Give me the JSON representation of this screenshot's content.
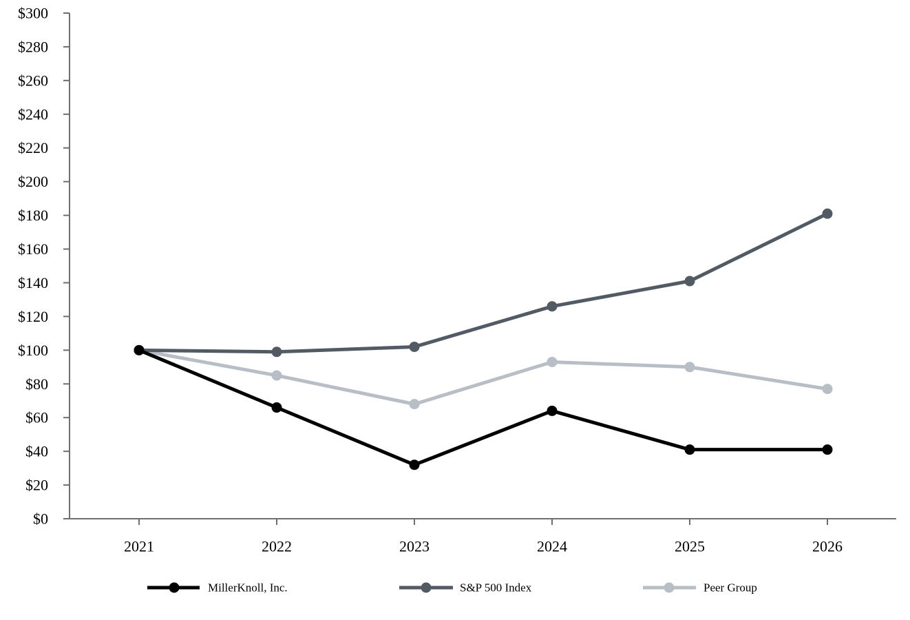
{
  "chart_data": {
    "type": "line",
    "title": "",
    "xlabel": "",
    "ylabel": "",
    "categories": [
      "2021",
      "2022",
      "2023",
      "2024",
      "2025",
      "2026"
    ],
    "ylim": [
      0,
      300
    ],
    "y_ticks": [
      0,
      20,
      40,
      60,
      80,
      100,
      120,
      140,
      160,
      180,
      200,
      220,
      240,
      260,
      280,
      300
    ],
    "y_tick_labels": [
      "$0",
      "$20",
      "$40",
      "$60",
      "$80",
      "$100",
      "$120",
      "$140",
      "$160",
      "$180",
      "$200",
      "$220",
      "$240",
      "$260",
      "$280",
      "$300"
    ],
    "grid": false,
    "legend_position": "bottom",
    "series": [
      {
        "key": "millerknoll",
        "name": "MillerKnoll, Inc.",
        "color": "#000000",
        "values": [
          100,
          66,
          32,
          64,
          41,
          41
        ]
      },
      {
        "key": "sp500",
        "name": "S&P 500 Index",
        "color": "#525a63",
        "values": [
          100,
          99,
          102,
          126,
          141,
          181
        ]
      },
      {
        "key": "peer",
        "name": "Peer Group",
        "color": "#b8bec6",
        "values": [
          100,
          85,
          68,
          93,
          90,
          77
        ]
      }
    ]
  }
}
